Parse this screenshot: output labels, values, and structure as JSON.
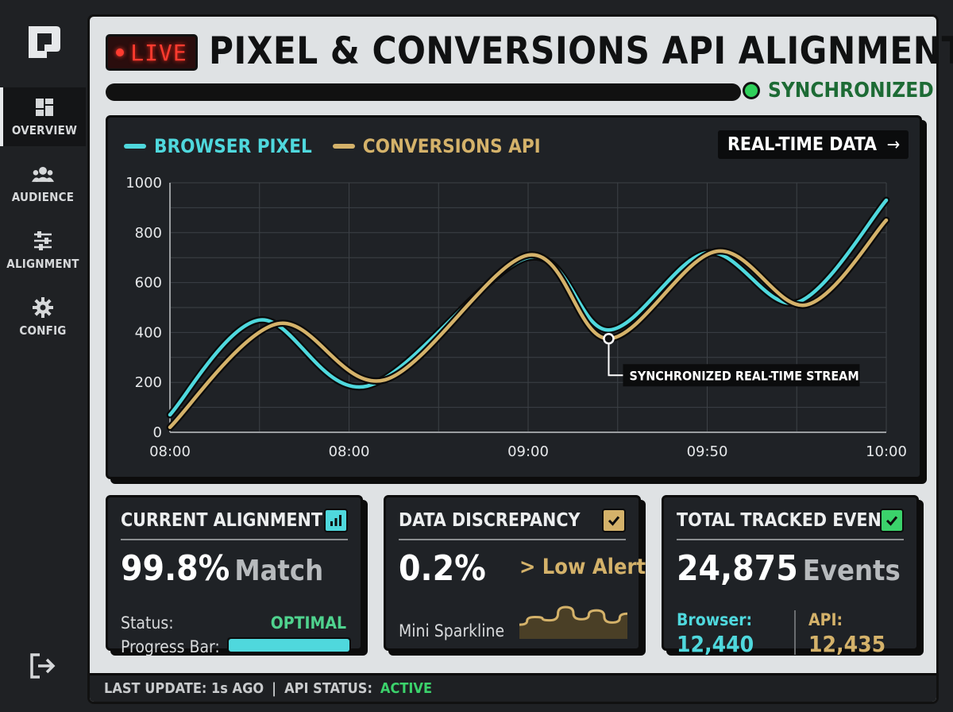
{
  "sidebar": {
    "items": [
      {
        "label": "OVERVIEW",
        "icon": "dashboard-icon",
        "active": true
      },
      {
        "label": "AUDIENCE",
        "icon": "users-icon",
        "active": false
      },
      {
        "label": "ALIGNMENT",
        "icon": "sliders-icon",
        "active": false
      },
      {
        "label": "CONFIG",
        "icon": "gear-icon",
        "active": false
      }
    ],
    "logout_icon": "logout-icon"
  },
  "header": {
    "live_label": "LIVE",
    "title": "PIXEL & CONVERSIONS API ALIGNMENT",
    "status": "SYNCHRONIZED",
    "status_color": "#2fd05a"
  },
  "chart": {
    "legend": [
      {
        "name": "BROWSER PIXEL",
        "color": "#4fd8dd"
      },
      {
        "name": "CONVERSIONS API",
        "color": "#d4b26a"
      }
    ],
    "realtime_label": "REAL-TIME DATA",
    "arrow_icon": "arrow-right-icon",
    "annotation": "SYNCHRONIZED REAL-TIME STREAM"
  },
  "chart_data": {
    "type": "line",
    "x": [
      "08:00",
      "08:00",
      "09:00",
      "09:50",
      "10:00"
    ],
    "ylim": [
      0,
      1000
    ],
    "yticks": [
      0,
      200,
      400,
      600,
      800,
      1000
    ],
    "grid": true,
    "legend_position": "top-left",
    "series": [
      {
        "name": "BROWSER PIXEL",
        "color": "#4fd8dd",
        "points": [
          [
            0,
            70
          ],
          [
            0.5,
            450
          ],
          [
            1.1,
            185
          ],
          [
            2,
            700
          ],
          [
            2.45,
            410
          ],
          [
            3,
            720
          ],
          [
            3.5,
            520
          ],
          [
            4,
            930
          ]
        ]
      },
      {
        "name": "CONVERSIONS API",
        "color": "#d4b26a",
        "points": [
          [
            0,
            20
          ],
          [
            0.6,
            435
          ],
          [
            1.2,
            210
          ],
          [
            2,
            710
          ],
          [
            2.45,
            375
          ],
          [
            3.05,
            725
          ],
          [
            3.55,
            510
          ],
          [
            4,
            850
          ]
        ]
      }
    ],
    "annotation": {
      "text": "SYNCHRONIZED REAL-TIME STREAM",
      "x": 2.45,
      "y": 375
    }
  },
  "cards": {
    "alignment": {
      "title": "CURRENT ALIGNMENT",
      "value": "99.8%",
      "unit": "Match",
      "status_label": "Status:",
      "status_value": "OPTIMAL",
      "progress_label": "Progress Bar:",
      "progress": 0.998,
      "icon": "bar-chart-icon",
      "icon_color": "#4fd8dd"
    },
    "discrepancy": {
      "title": "DATA DISCREPANCY",
      "value": "0.2%",
      "alert": "> Low Alert",
      "sparkline_label": "Mini Sparkline",
      "sparkline": [
        20,
        34,
        28,
        52,
        30,
        46,
        24,
        40
      ],
      "icon": "check-icon",
      "icon_color": "#d4b26a"
    },
    "events": {
      "title": "TOTAL TRACKED EVENTS",
      "value": "24,875",
      "unit": "Events",
      "browser_label": "Browser:",
      "browser_value": "12,440",
      "api_label": "API:",
      "api_value": "12,435",
      "icon": "check-icon",
      "icon_color": "#3bd26b"
    }
  },
  "footer": {
    "last_update": "LAST UPDATE: 1s AGO",
    "separator": "|",
    "api_status_label": "API STATUS:",
    "api_status_value": "ACTIVE"
  }
}
